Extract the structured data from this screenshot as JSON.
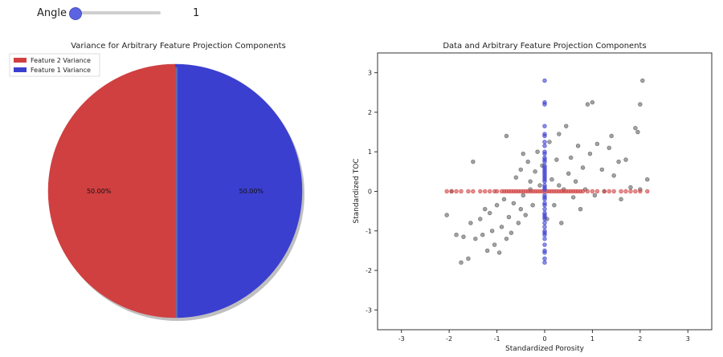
{
  "slider": {
    "label": "Angle",
    "value": "1",
    "min": 0,
    "max": 180,
    "position": 1
  },
  "chart_data": [
    {
      "type": "pie",
      "title": "Variance for Arbitrary Feature Projection Components",
      "slices": [
        {
          "name": "Feature 1 Variance",
          "value": 50.0,
          "label": "50.00%",
          "color": "#3b3fcf"
        },
        {
          "name": "Feature 2 Variance",
          "value": 50.0,
          "label": "50.00%",
          "color": "#d04040"
        }
      ],
      "legend": [
        "Feature 2 Variance",
        "Feature 1 Variance"
      ],
      "legend_position": "top-left"
    },
    {
      "type": "scatter",
      "title": "Data and Arbitrary Feature Projection Components",
      "xlabel": "Standardized Porosity",
      "ylabel": "Standardized TOC",
      "xlim": [
        -3.5,
        3.5
      ],
      "ylim": [
        -3.5,
        3.5
      ],
      "xticks": [
        -3,
        -2,
        -1,
        0,
        1,
        2,
        3
      ],
      "yticks": [
        -3,
        -2,
        -1,
        0,
        1,
        2,
        3
      ],
      "grid": false,
      "series": [
        {
          "color": "#555555",
          "points": [
            [
              -2.05,
              -0.6
            ],
            [
              -1.85,
              -1.1
            ],
            [
              -1.75,
              -1.8
            ],
            [
              -1.7,
              -1.15
            ],
            [
              -1.6,
              -1.7
            ],
            [
              -1.55,
              -0.8
            ],
            [
              -1.5,
              0.75
            ],
            [
              -1.45,
              -1.2
            ],
            [
              -1.35,
              -0.7
            ],
            [
              -1.3,
              -1.1
            ],
            [
              -1.25,
              -0.45
            ],
            [
              -1.2,
              -1.5
            ],
            [
              -1.15,
              -0.55
            ],
            [
              -1.1,
              -1.0
            ],
            [
              -1.05,
              -1.35
            ],
            [
              -1.0,
              -0.35
            ],
            [
              -0.95,
              -1.55
            ],
            [
              -0.9,
              -0.9
            ],
            [
              -0.85,
              -0.2
            ],
            [
              -0.8,
              -1.2
            ],
            [
              -0.8,
              1.4
            ],
            [
              -0.75,
              -0.65
            ],
            [
              -0.7,
              -1.05
            ],
            [
              -0.65,
              -0.3
            ],
            [
              -0.6,
              0.35
            ],
            [
              -0.55,
              -0.8
            ],
            [
              -0.5,
              -0.45
            ],
            [
              -0.5,
              0.55
            ],
            [
              -0.45,
              -0.1
            ],
            [
              -0.4,
              -0.6
            ],
            [
              -0.35,
              0.75
            ],
            [
              -0.3,
              0.25
            ],
            [
              -0.25,
              -0.35
            ],
            [
              -0.2,
              0.5
            ],
            [
              -0.15,
              1.0
            ],
            [
              -0.1,
              0.15
            ],
            [
              -0.05,
              0.65
            ],
            [
              0.05,
              -0.7
            ],
            [
              0.1,
              1.25
            ],
            [
              0.15,
              0.3
            ],
            [
              0.2,
              -0.35
            ],
            [
              0.25,
              0.8
            ],
            [
              0.3,
              1.45
            ],
            [
              0.35,
              -0.8
            ],
            [
              0.4,
              0.05
            ],
            [
              0.45,
              1.65
            ],
            [
              0.5,
              0.45
            ],
            [
              0.55,
              0.85
            ],
            [
              0.6,
              -0.15
            ],
            [
              0.65,
              0.25
            ],
            [
              0.7,
              1.15
            ],
            [
              0.75,
              -0.45
            ],
            [
              0.8,
              0.6
            ],
            [
              0.85,
              0.05
            ],
            [
              0.9,
              2.2
            ],
            [
              0.95,
              0.95
            ],
            [
              1.0,
              2.25
            ],
            [
              1.05,
              -0.1
            ],
            [
              1.1,
              1.2
            ],
            [
              1.2,
              0.55
            ],
            [
              1.25,
              0.0
            ],
            [
              1.35,
              1.1
            ],
            [
              1.4,
              1.4
            ],
            [
              1.45,
              0.4
            ],
            [
              1.55,
              0.75
            ],
            [
              1.6,
              -0.2
            ],
            [
              1.7,
              0.8
            ],
            [
              1.8,
              0.1
            ],
            [
              1.9,
              1.6
            ],
            [
              1.95,
              1.5
            ],
            [
              2.0,
              2.2
            ],
            [
              2.0,
              0.05
            ],
            [
              2.05,
              2.8
            ],
            [
              2.15,
              0.3
            ],
            [
              -0.3,
              0.05
            ],
            [
              0.3,
              0.15
            ],
            [
              -1.95,
              0.0
            ],
            [
              -0.45,
              0.95
            ]
          ]
        },
        {
          "color": "#d04040",
          "points": [
            [
              -2.05,
              0
            ],
            [
              -1.95,
              0
            ],
            [
              -1.85,
              0
            ],
            [
              -1.75,
              0
            ],
            [
              -1.6,
              0
            ],
            [
              -1.5,
              0
            ],
            [
              -1.35,
              0
            ],
            [
              -1.25,
              0
            ],
            [
              -1.15,
              0
            ],
            [
              -1.05,
              0
            ],
            [
              -1.0,
              0
            ],
            [
              -0.9,
              0
            ],
            [
              -0.85,
              0
            ],
            [
              -0.8,
              0
            ],
            [
              -0.75,
              0
            ],
            [
              -0.7,
              0
            ],
            [
              -0.65,
              0
            ],
            [
              -0.6,
              0
            ],
            [
              -0.55,
              0
            ],
            [
              -0.5,
              0
            ],
            [
              -0.45,
              0
            ],
            [
              -0.4,
              0
            ],
            [
              -0.35,
              0
            ],
            [
              -0.3,
              0
            ],
            [
              -0.25,
              0
            ],
            [
              -0.2,
              0
            ],
            [
              -0.15,
              0
            ],
            [
              -0.1,
              0
            ],
            [
              -0.05,
              0
            ],
            [
              0.0,
              0
            ],
            [
              0.05,
              0
            ],
            [
              0.1,
              0
            ],
            [
              0.15,
              0
            ],
            [
              0.2,
              0
            ],
            [
              0.25,
              0
            ],
            [
              0.3,
              0
            ],
            [
              0.35,
              0
            ],
            [
              0.4,
              0
            ],
            [
              0.45,
              0
            ],
            [
              0.5,
              0
            ],
            [
              0.55,
              0
            ],
            [
              0.6,
              0
            ],
            [
              0.65,
              0
            ],
            [
              0.7,
              0
            ],
            [
              0.75,
              0
            ],
            [
              0.8,
              0
            ],
            [
              0.9,
              0
            ],
            [
              1.0,
              0
            ],
            [
              1.1,
              0
            ],
            [
              1.25,
              0
            ],
            [
              1.35,
              0
            ],
            [
              1.45,
              0
            ],
            [
              1.6,
              0
            ],
            [
              1.7,
              0
            ],
            [
              1.8,
              0
            ],
            [
              1.9,
              0
            ],
            [
              2.0,
              0
            ],
            [
              2.15,
              0
            ]
          ]
        },
        {
          "color": "#3b3fcf",
          "points": [
            [
              0,
              2.8
            ],
            [
              0,
              2.25
            ],
            [
              0,
              2.2
            ],
            [
              0,
              1.65
            ],
            [
              0,
              1.45
            ],
            [
              0,
              1.4
            ],
            [
              0,
              1.25
            ],
            [
              0,
              1.15
            ],
            [
              0,
              1.0
            ],
            [
              0,
              0.95
            ],
            [
              0,
              0.85
            ],
            [
              0,
              0.8
            ],
            [
              0,
              0.75
            ],
            [
              0,
              0.65
            ],
            [
              0,
              0.6
            ],
            [
              0,
              0.55
            ],
            [
              0,
              0.5
            ],
            [
              0,
              0.45
            ],
            [
              0,
              0.4
            ],
            [
              0,
              0.35
            ],
            [
              0,
              0.3
            ],
            [
              0,
              0.25
            ],
            [
              0,
              0.15
            ],
            [
              0,
              0.1
            ],
            [
              0,
              0.05
            ],
            [
              0,
              -0.1
            ],
            [
              0,
              -0.15
            ],
            [
              0,
              -0.2
            ],
            [
              0,
              -0.3
            ],
            [
              0,
              -0.35
            ],
            [
              0,
              -0.45
            ],
            [
              0,
              -0.55
            ],
            [
              0,
              -0.6
            ],
            [
              0,
              -0.65
            ],
            [
              0,
              -0.7
            ],
            [
              0,
              -0.8
            ],
            [
              0,
              -0.9
            ],
            [
              0,
              -1.0
            ],
            [
              0,
              -1.05
            ],
            [
              0,
              -1.1
            ],
            [
              0,
              -1.2
            ],
            [
              0,
              -1.35
            ],
            [
              0,
              -1.5
            ],
            [
              0,
              -1.55
            ],
            [
              0,
              -1.7
            ],
            [
              0,
              -1.8
            ]
          ]
        }
      ]
    }
  ]
}
